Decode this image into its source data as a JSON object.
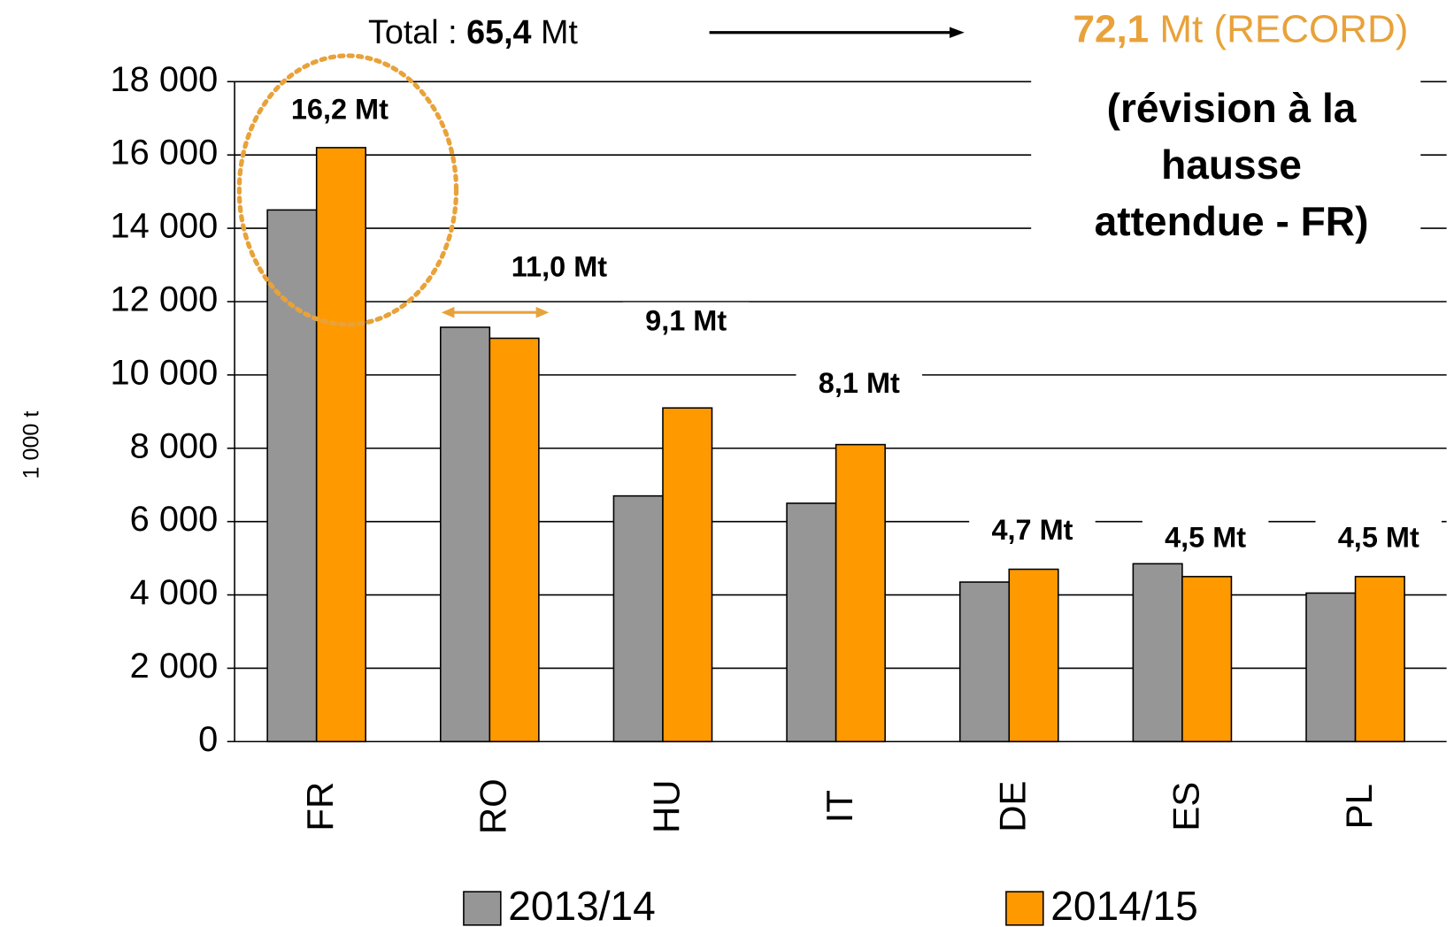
{
  "chart_data": {
    "type": "bar",
    "y_label": "1 000 t",
    "categories": [
      "FR",
      "RO",
      "HU",
      "IT",
      "DE",
      "ES",
      "PL"
    ],
    "series": [
      {
        "name": "2013/14",
        "color": "#969696",
        "values": [
          14500,
          11300,
          6700,
          6500,
          4350,
          4850,
          4050
        ]
      },
      {
        "name": "2014/15",
        "color": "#ff9900",
        "values": [
          16200,
          11000,
          9100,
          8100,
          4700,
          4500,
          4500
        ],
        "value_labels": [
          "16,2 Mt",
          "11,0 Mt",
          "9,1 Mt",
          "8,1 Mt",
          "4,7 Mt",
          "4,5 Mt",
          "4,5 Mt"
        ]
      }
    ],
    "ylim": [
      0,
      18000
    ],
    "yticks": [
      {
        "value": 0,
        "label": "0"
      },
      {
        "value": 2000,
        "label": "2 000"
      },
      {
        "value": 4000,
        "label": "4 000"
      },
      {
        "value": 6000,
        "label": "6 000"
      },
      {
        "value": 8000,
        "label": "8 000"
      },
      {
        "value": 10000,
        "label": "10 000"
      },
      {
        "value": 12000,
        "label": "12 000"
      },
      {
        "value": 14000,
        "label": "14 000"
      },
      {
        "value": 16000,
        "label": "16 000"
      },
      {
        "value": 18000,
        "label": "18 000"
      }
    ],
    "grid": true,
    "legend": "bottom",
    "annotations": {
      "total": [
        "Total : ",
        "65,4",
        " Mt"
      ],
      "record": [
        "72,1",
        " Mt (RECORD)"
      ],
      "note": [
        "(révision à la",
        "hausse",
        "attendue - FR)"
      ],
      "color": "#e8a23a"
    }
  }
}
